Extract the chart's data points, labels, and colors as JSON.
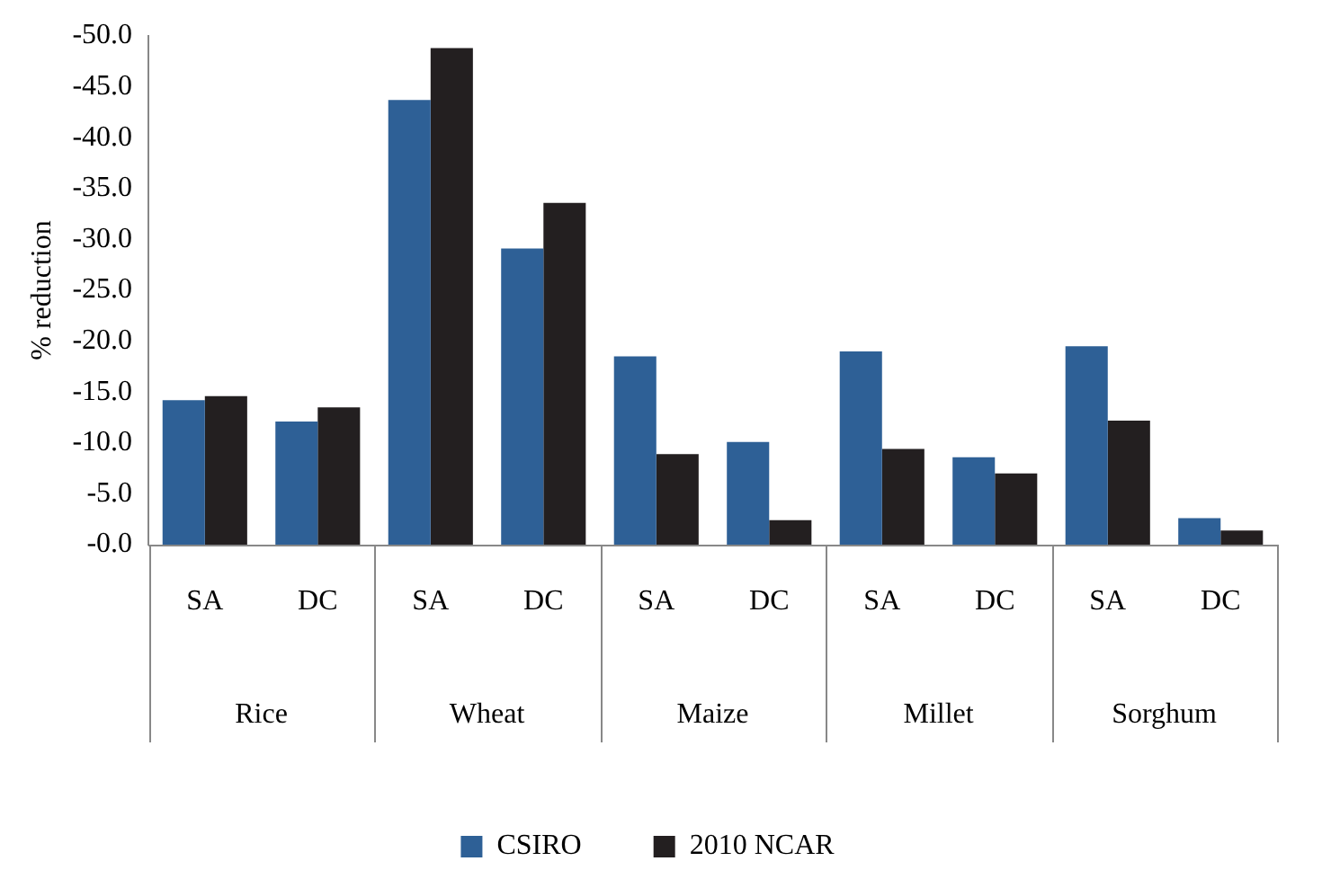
{
  "chart_data": {
    "type": "bar",
    "ylabel": "% reduction",
    "categories": [
      "SA",
      "DC",
      "SA",
      "DC",
      "SA",
      "DC",
      "SA",
      "DC",
      "SA",
      "DC"
    ],
    "annotations": [
      "Rice",
      "Wheat",
      "Maize",
      "Millet",
      "Sorghum"
    ],
    "series": [
      {
        "name": "CSIRO",
        "color": "#2e6096",
        "values": [
          -14.2,
          -12.1,
          -43.7,
          -29.1,
          -18.5,
          -10.1,
          -19.0,
          -8.6,
          -19.5,
          -2.6
        ]
      },
      {
        "name": "2010 NCAR",
        "color": "#231f20",
        "values": [
          -14.6,
          -13.5,
          -48.8,
          -33.6,
          -8.9,
          -2.4,
          -9.4,
          -7.0,
          -12.2,
          -1.4
        ]
      }
    ],
    "ylim": [
      0,
      -50
    ],
    "yticks": [
      {
        "value": 0,
        "label": "-0.0"
      },
      {
        "value": -5,
        "label": "-5.0"
      },
      {
        "value": -10,
        "label": "-10.0"
      },
      {
        "value": -15,
        "label": "-15.0"
      },
      {
        "value": -20,
        "label": "-20.0"
      },
      {
        "value": -25,
        "label": "-25.0"
      },
      {
        "value": -30,
        "label": "-30.0"
      },
      {
        "value": -35,
        "label": "-35.0"
      },
      {
        "value": -40,
        "label": "-40.0"
      },
      {
        "value": -45,
        "label": "-45.0"
      },
      {
        "value": -50,
        "label": "-50.0"
      }
    ],
    "grid": false,
    "legend": "bottom"
  }
}
